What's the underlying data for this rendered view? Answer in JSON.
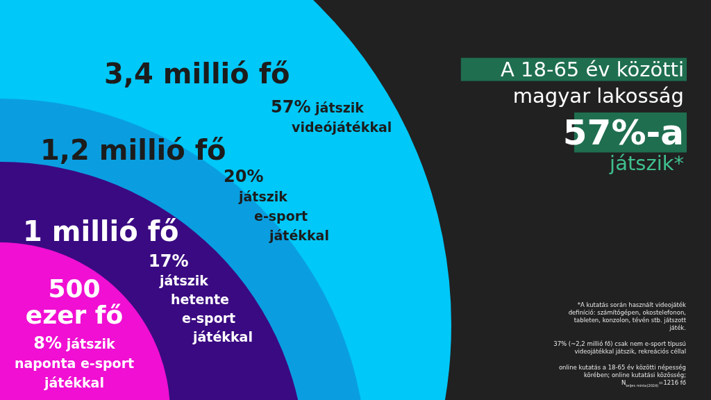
{
  "chart_data": {
    "type": "other",
    "title": "A 18-65 év közötti\nmagyar lakosság\n57%-a\njátszik*",
    "categories": [
      "3,4 millió fő",
      "1,2 millió fő",
      "1 millió fő",
      "500 ezer fő"
    ],
    "values": [
      57,
      20,
      17,
      8
    ],
    "value_labels": [
      "57% játszik videójátékkal",
      "20% játszik e-sport játékkal",
      "17% játszik hetente e-sport játékkal",
      "8% játszik naponta e-sport játékkal"
    ],
    "colors": [
      "#00c8f8",
      "#0a9ee0",
      "#3a0a82",
      "#f00fd2"
    ],
    "annotations": [
      "*A kutatás során használt videojáték definíció: számítógépen, okostelefonon, tableten, konzolon, tévén stb. játszott játék.",
      "37% (~2,2 millió fő) csak nem e-sport típusú videojátékkal játszik, rekreációs céllal",
      "online kutatás a 18-65 év közötti népesség körében; online kutatási közösség; N$_{teljes minta(2024)}$=1216 fő"
    ]
  }
}
